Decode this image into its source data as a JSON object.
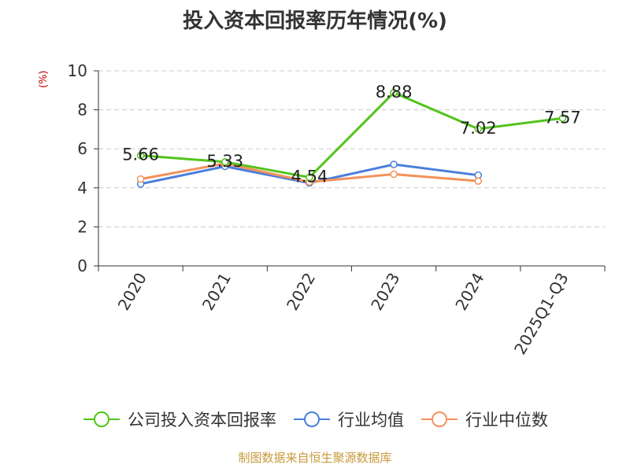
{
  "chart_data": {
    "type": "line",
    "title": "投入资本回报率历年情况(%)",
    "ylabel": "(%)",
    "categories": [
      "2020",
      "2021",
      "2022",
      "2023",
      "2024",
      "2025Q1-Q3"
    ],
    "ylim": [
      0,
      10
    ],
    "yticks": [
      0,
      2,
      4,
      6,
      8,
      10
    ],
    "grid": true,
    "legend_position": "bottom",
    "series": [
      {
        "name": "公司投入资本回报率",
        "color": "#52c41a",
        "values": [
          5.66,
          5.33,
          4.54,
          8.88,
          7.02,
          7.57
        ],
        "labels": [
          "5.66",
          "5.33",
          "4.54",
          "8.88",
          "7.02",
          "7.57"
        ]
      },
      {
        "name": "行业均值",
        "color": "#4a7fdb",
        "values": [
          4.2,
          5.1,
          4.25,
          5.2,
          4.65,
          null
        ]
      },
      {
        "name": "行业中位数",
        "color": "#f4915a",
        "values": [
          4.45,
          5.25,
          4.3,
          4.7,
          4.35,
          null
        ]
      }
    ]
  },
  "footer": "制图数据来自恒生聚源数据库"
}
